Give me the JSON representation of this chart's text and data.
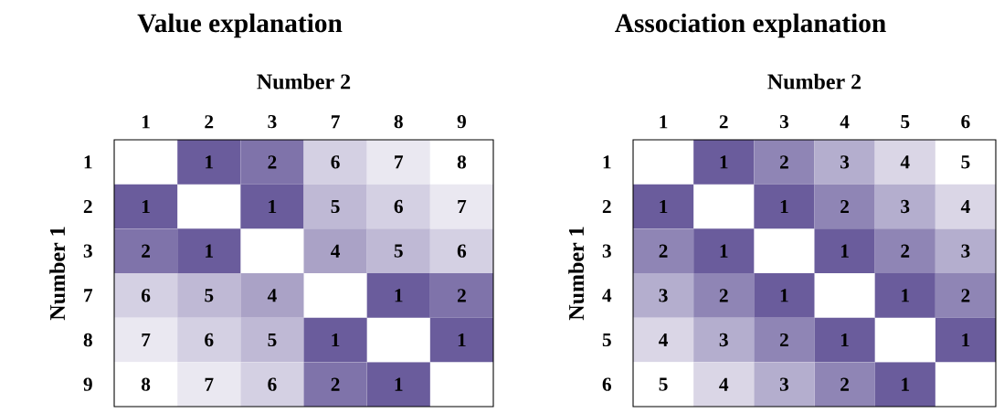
{
  "chart_data": [
    {
      "type": "heatmap",
      "title": "Value explanation",
      "xlabel": "Number 2",
      "ylabel": "Number 1",
      "color": "#6a5c9c",
      "data_labels": true,
      "categories": [
        "1",
        "2",
        "3",
        "7",
        "8",
        "9"
      ],
      "y_categories": [
        "1",
        "2",
        "3",
        "7",
        "8",
        "9"
      ],
      "cells": [
        [
          null,
          1,
          2,
          6,
          7,
          8
        ],
        [
          1,
          null,
          1,
          5,
          6,
          7
        ],
        [
          2,
          1,
          null,
          4,
          5,
          6
        ],
        [
          6,
          5,
          4,
          null,
          1,
          2
        ],
        [
          7,
          6,
          5,
          1,
          null,
          1
        ],
        [
          8,
          7,
          6,
          2,
          1,
          null
        ]
      ]
    },
    {
      "type": "heatmap",
      "title": "Association explanation",
      "xlabel": "Number 2",
      "ylabel": "Number 1",
      "color": "#6a5c9c",
      "data_labels": true,
      "categories": [
        "1",
        "2",
        "3",
        "4",
        "5",
        "6"
      ],
      "y_categories": [
        "1",
        "2",
        "3",
        "4",
        "5",
        "6"
      ],
      "cells": [
        [
          null,
          1,
          2,
          3,
          4,
          5
        ],
        [
          1,
          null,
          1,
          2,
          3,
          4
        ],
        [
          2,
          1,
          null,
          1,
          2,
          3
        ],
        [
          3,
          2,
          1,
          null,
          1,
          2
        ],
        [
          4,
          3,
          2,
          1,
          null,
          1
        ],
        [
          5,
          4,
          3,
          2,
          1,
          null
        ]
      ]
    }
  ]
}
